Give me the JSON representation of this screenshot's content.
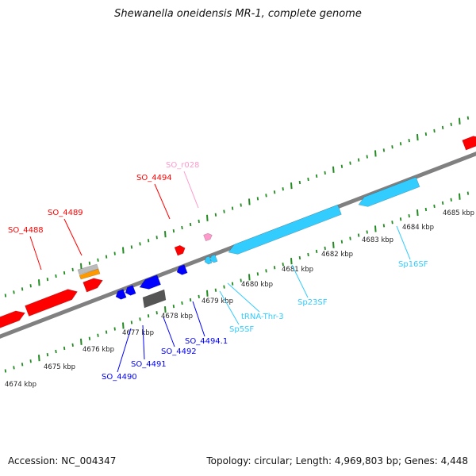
{
  "title": "Shewanella oneidensis MR-1, complete genome",
  "footer": {
    "accession": "Accession: NC_004347",
    "summary": "Topology: circular; Length: 4,969,803 bp; Genes: 4,448"
  },
  "colors": {
    "backbone": "#808080",
    "tick": "#228b22",
    "cds": "#ff0000",
    "cds_blue": "#0000ff",
    "rrna": "#33ccff",
    "trna": "#33ccff",
    "pink": "#ff99cc",
    "gray": "#555555",
    "orange": "#ff9900"
  },
  "kbp_labels": [
    "4674 kbp",
    "4675 kbp",
    "4676 kbp",
    "4677 kbp",
    "4678 kbp",
    "4679 kbp",
    "4680 kbp",
    "4681 kbp",
    "4682 kbp",
    "4683 kbp",
    "4684 kbp",
    "4685 kbp"
  ],
  "features": [
    {
      "id": "SO_4488",
      "color": "#ff0000"
    },
    {
      "id": "SO_4489",
      "color": "#ff0000"
    },
    {
      "id": "SO_4494",
      "color": "#ff0000"
    },
    {
      "id": "SO_r028",
      "color": "#ff99cc"
    },
    {
      "id": "SO_4490",
      "color": "#0000ff"
    },
    {
      "id": "SO_4491",
      "color": "#0000ff"
    },
    {
      "id": "SO_4492",
      "color": "#0000ff"
    },
    {
      "id": "SO_4494.1",
      "color": "#0000ff"
    },
    {
      "id": "Sp5SF",
      "color": "#33ccff"
    },
    {
      "id": "tRNA-Thr-3",
      "color": "#33ccff"
    },
    {
      "id": "Sp23SF",
      "color": "#33ccff"
    },
    {
      "id": "Sp16SF",
      "color": "#33ccff"
    }
  ]
}
